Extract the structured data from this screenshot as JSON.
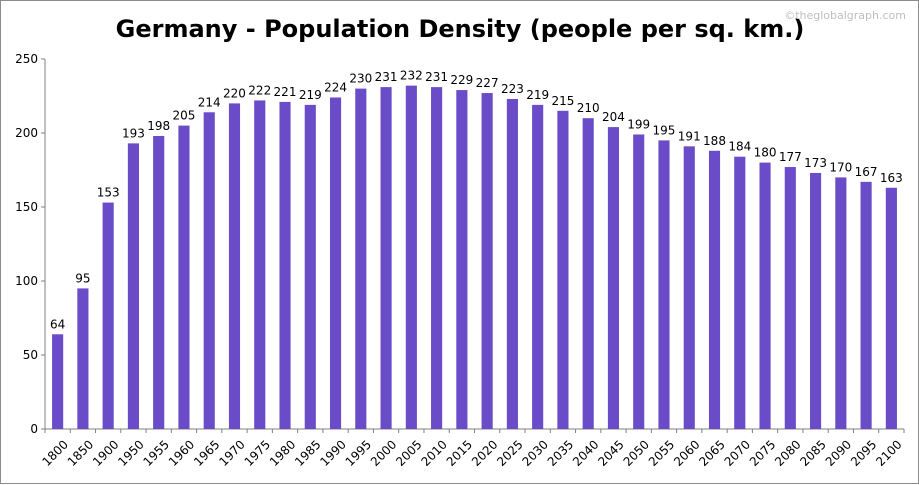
{
  "chart_data": {
    "type": "bar",
    "title": "Germany - Population Density (people per sq. km.)",
    "watermark": "©theglobalgraph.com",
    "xlabel": "",
    "ylabel": "",
    "ylim": [
      0,
      250
    ],
    "yticks": [
      0,
      50,
      100,
      150,
      200,
      250
    ],
    "grid": false,
    "bar_color": "#6a4bc8",
    "categories": [
      "1800",
      "1850",
      "1900",
      "1950",
      "1955",
      "1960",
      "1965",
      "1970",
      "1975",
      "1980",
      "1985",
      "1990",
      "1995",
      "2000",
      "2005",
      "2010",
      "2015",
      "2020",
      "2025",
      "2030",
      "2035",
      "2040",
      "2045",
      "2050",
      "2055",
      "2060",
      "2065",
      "2070",
      "2075",
      "2080",
      "2085",
      "2090",
      "2095",
      "2100"
    ],
    "values": [
      64,
      95,
      153,
      193,
      198,
      205,
      214,
      220,
      222,
      221,
      219,
      224,
      230,
      231,
      232,
      231,
      229,
      227,
      223,
      219,
      215,
      210,
      204,
      199,
      195,
      191,
      188,
      184,
      180,
      177,
      173,
      170,
      167,
      163
    ]
  }
}
